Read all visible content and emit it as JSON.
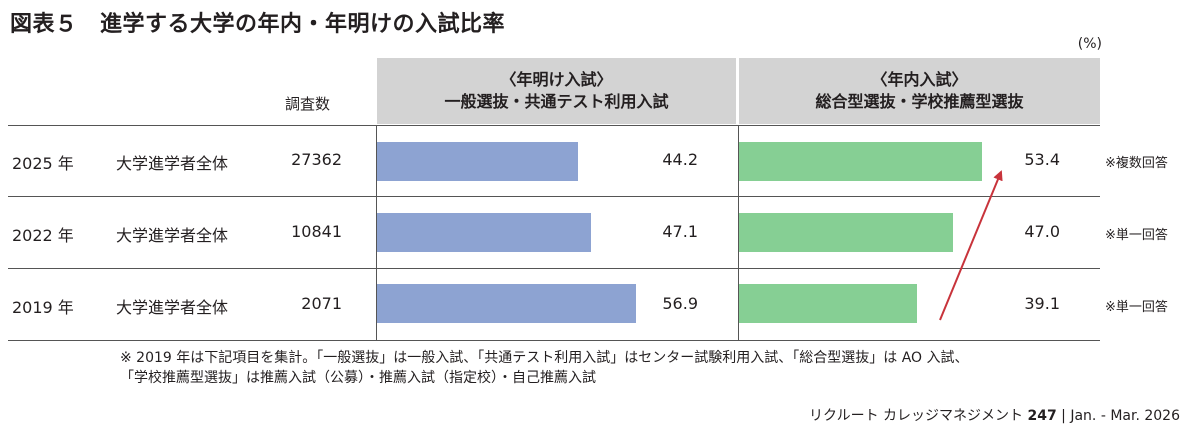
{
  "title": "図表５　進学する大学の年内・年明けの入試比率",
  "unit": "(%)",
  "headers": {
    "count": "調査数",
    "group_a_line1": "〈年明け入試〉",
    "group_a_line2": "一般選抜・共通テスト利用入試",
    "group_b_line1": "〈年内入試〉",
    "group_b_line2": "総合型選抜・学校推薦型選抜"
  },
  "rows": [
    {
      "year": "2025 年",
      "segment": "大学進学者全体",
      "count": "27362",
      "val_a": "44.2",
      "val_b": "53.4",
      "note": "※複数回答"
    },
    {
      "year": "2022 年",
      "segment": "大学進学者全体",
      "count": "10841",
      "val_a": "47.1",
      "val_b": "47.0",
      "note": "※単一回答"
    },
    {
      "year": "2019 年",
      "segment": "大学進学者全体",
      "count": "2071",
      "val_a": "56.9",
      "val_b": "39.1",
      "note": "※単一回答"
    }
  ],
  "footnote": {
    "line1": "※ 2019 年は下記項目を集計。「一般選抜」は一般入試、「共通テスト利用入試」はセンター試験利用入試、「総合型選抜」は AO 入試、",
    "line2": "「学校推薦型選抜」は推薦入試（公募）・推薦入試（指定校）・自己推薦入試"
  },
  "footer": {
    "publication": "リクルート カレッジマネジメント",
    "page": "247",
    "issue": "Jan. - Mar. 2026"
  },
  "chart_data": {
    "type": "bar",
    "categories": [
      "2025 年",
      "2022 年",
      "2019 年"
    ],
    "series": [
      {
        "name": "〈年明け入試〉一般選抜・共通テスト利用入試",
        "values": [
          44.2,
          47.1,
          56.9
        ],
        "color": "#8da3d2"
      },
      {
        "name": "〈年内入試〉総合型選抜・学校推薦型選抜",
        "values": [
          53.4,
          47.0,
          39.1
        ],
        "color": "#86cf94"
      }
    ],
    "title": "図表５　進学する大学の年内・年明けの入試比率",
    "ylabel": "(%)",
    "orientation": "horizontal",
    "annotations": [
      "arrow from 2019 年 39.1 to 2025 年 53.4 (年内入試)"
    ]
  }
}
